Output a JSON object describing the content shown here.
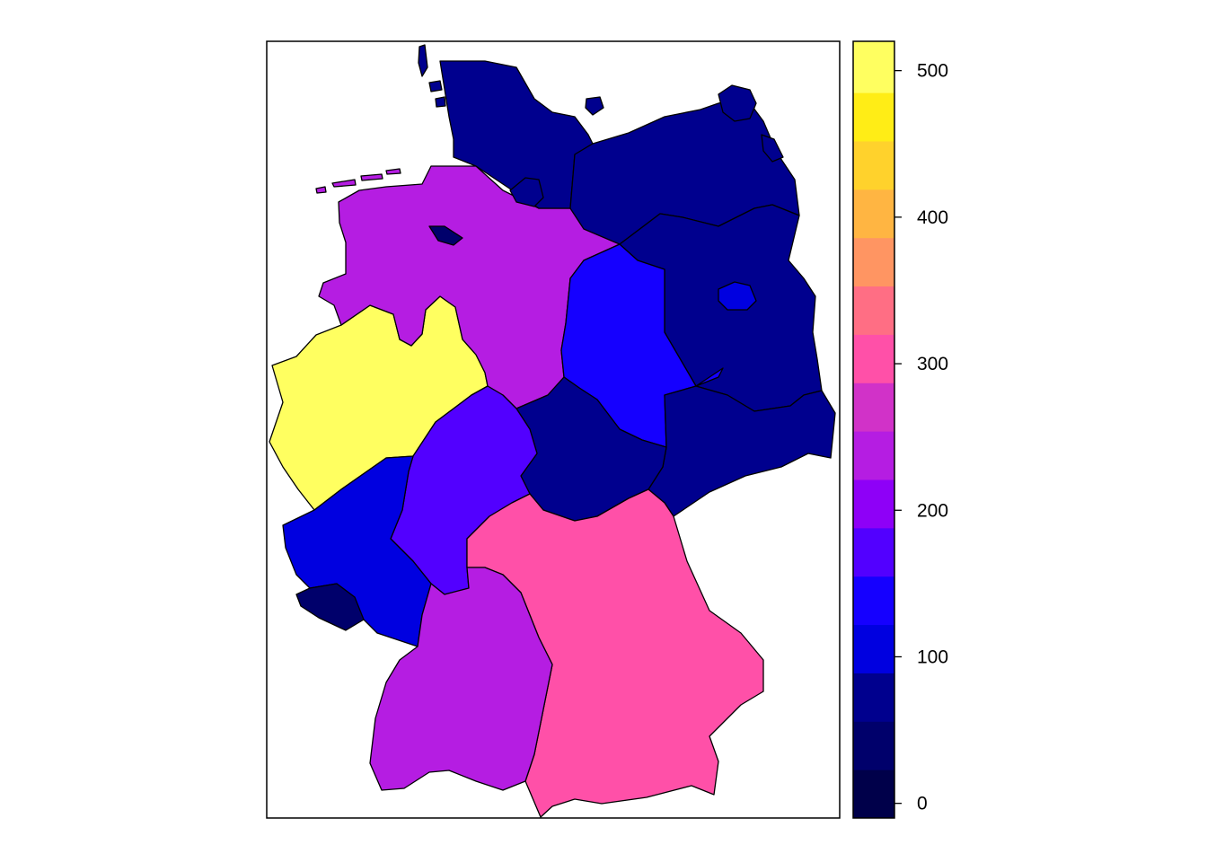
{
  "map": {
    "regions": [
      {
        "id": "schleswig-holstein",
        "value": 75
      },
      {
        "id": "mecklenburg-vorpommern",
        "value": 70
      },
      {
        "id": "hamburg",
        "value": 60
      },
      {
        "id": "niedersachsen",
        "value": 235
      },
      {
        "id": "bremen",
        "value": 35
      },
      {
        "id": "brandenburg",
        "value": 70
      },
      {
        "id": "berlin",
        "value": 110
      },
      {
        "id": "sachsen-anhalt",
        "value": 140
      },
      {
        "id": "nordrhein-westfalen",
        "value": 510
      },
      {
        "id": "hessen",
        "value": 175
      },
      {
        "id": "thueringen",
        "value": 70
      },
      {
        "id": "sachsen",
        "value": 70
      },
      {
        "id": "rheinland-pfalz",
        "value": 100
      },
      {
        "id": "saarland",
        "value": 40
      },
      {
        "id": "baden-wuerttemberg",
        "value": 235
      },
      {
        "id": "bayern",
        "value": 300
      }
    ]
  },
  "legend": {
    "range": [
      -10,
      520
    ],
    "bin_width": 33,
    "colors": [
      "#00004A",
      "#00006B",
      "#00008E",
      "#0000E0",
      "#1500FF",
      "#5200FF",
      "#8E00F7",
      "#B51DE2",
      "#D132C8",
      "#FF50A8",
      "#FF6E84",
      "#FF9562",
      "#FFB542",
      "#FFD22C",
      "#FFED16",
      "#FFFF60"
    ],
    "ticks": [
      "0",
      "100",
      "200",
      "300",
      "400",
      "500"
    ],
    "tick_values": [
      0,
      100,
      200,
      300,
      400,
      500
    ]
  }
}
